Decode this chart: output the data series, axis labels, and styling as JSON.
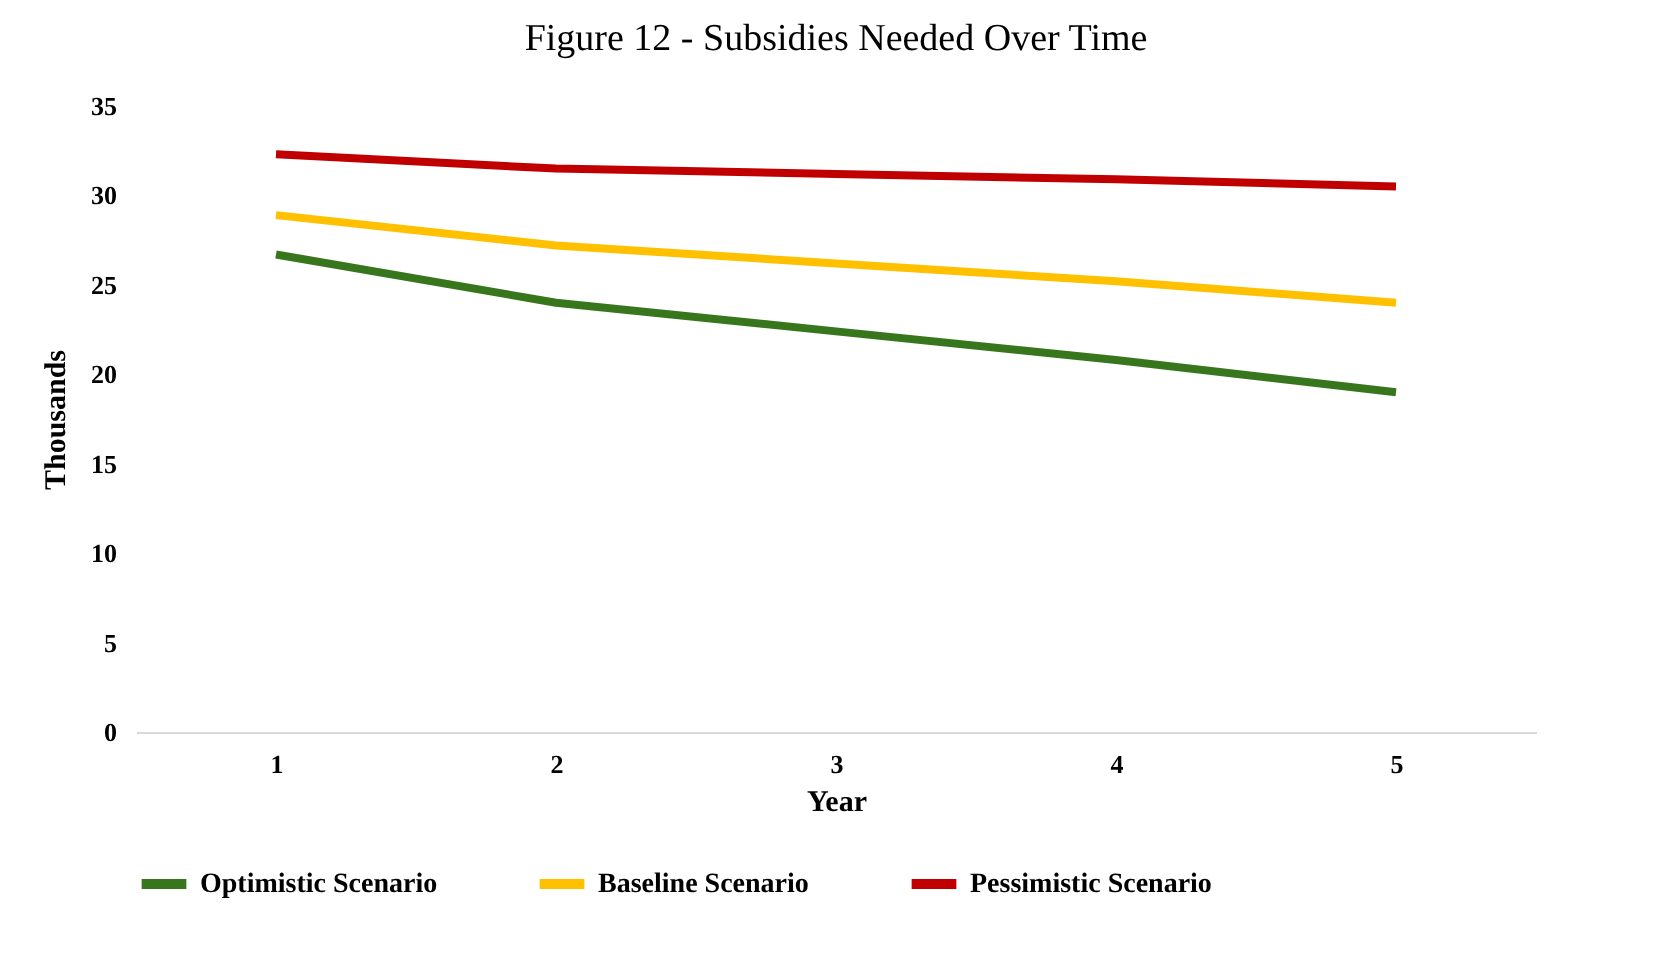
{
  "chart_data": {
    "type": "line",
    "title": "Figure 12  -  Subsidies Needed Over Time",
    "xlabel": "Year",
    "ylabel": "Thousands",
    "categories": [
      "1",
      "2",
      "3",
      "4",
      "5"
    ],
    "series": [
      {
        "name": "Optimistic Scenario",
        "color": "#38761d",
        "values": [
          26.7,
          24.0,
          22.4,
          20.8,
          19.0
        ]
      },
      {
        "name": "Baseline Scenario",
        "color": "#ffc000",
        "values": [
          28.9,
          27.2,
          26.2,
          25.2,
          24.0
        ]
      },
      {
        "name": "Pessimistic Scenario",
        "color": "#c00000",
        "values": [
          32.3,
          31.5,
          31.2,
          30.9,
          30.5
        ]
      }
    ],
    "ylim": [
      0,
      35
    ],
    "yticks": [
      0,
      5,
      10,
      15,
      20,
      25,
      30,
      35
    ],
    "grid": false,
    "legend": "bottom",
    "marker": "none",
    "line_style": "solid"
  }
}
